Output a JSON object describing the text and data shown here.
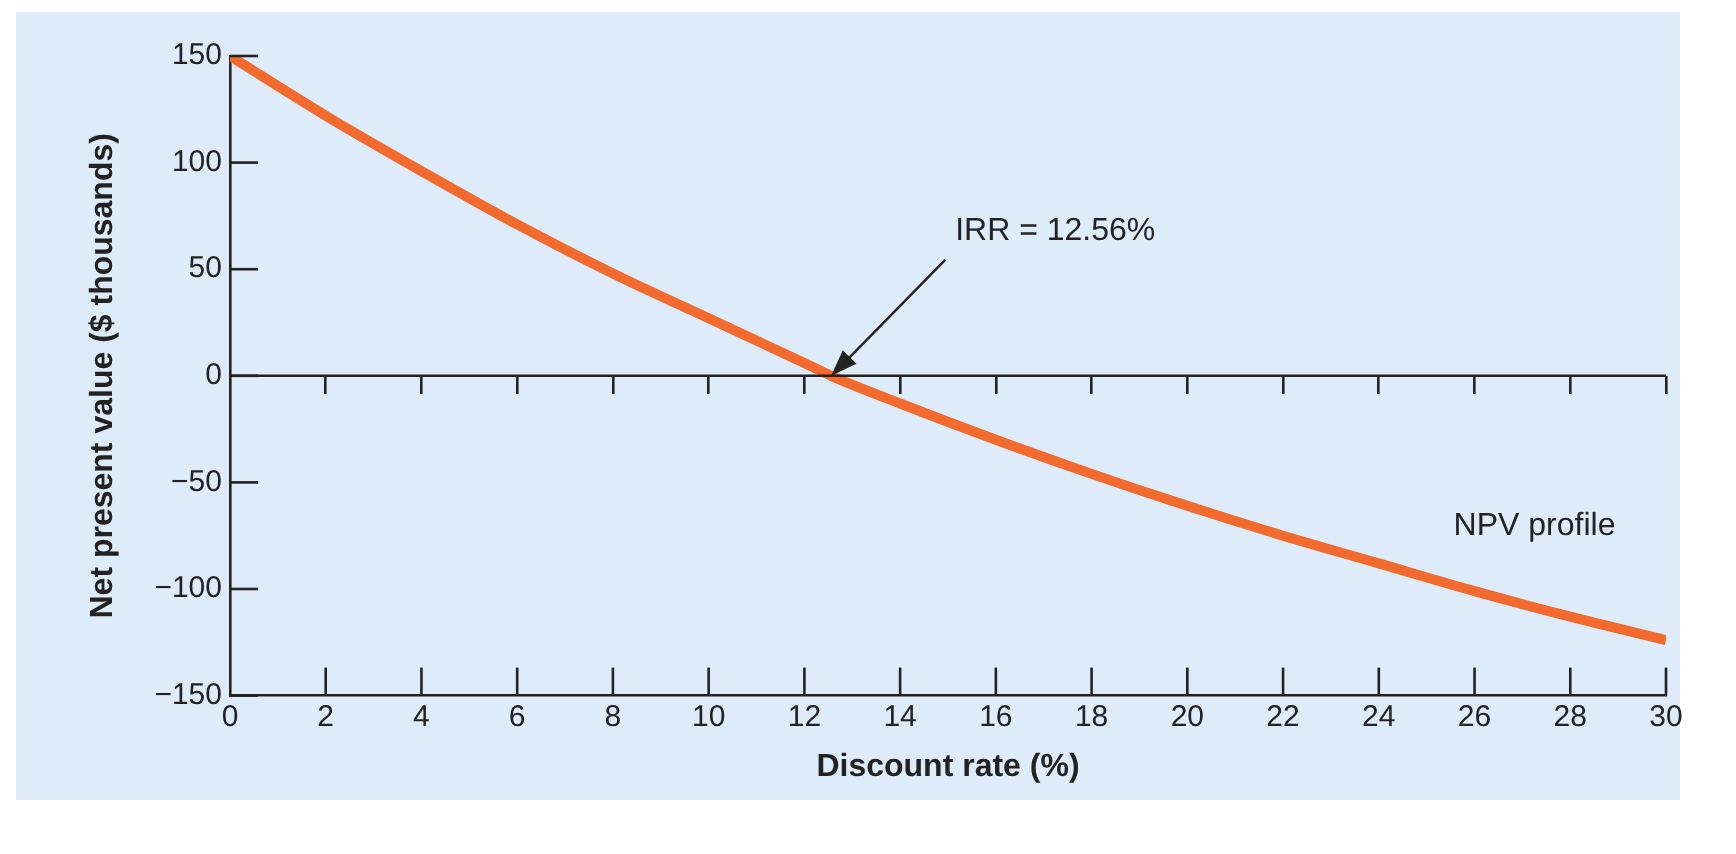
{
  "chart_data": {
    "type": "line",
    "xlabel": "Discount rate (%)",
    "ylabel": "Net present value ($ thousands)",
    "x": [
      0,
      2,
      4,
      6,
      8,
      10,
      12,
      12.56,
      14,
      16,
      18,
      20,
      22,
      24,
      26,
      28,
      30
    ],
    "series": [
      {
        "name": "NPV profile",
        "color": "#f26a2e",
        "values": [
          150,
          122,
          96,
          71,
          48,
          27,
          6,
          0,
          -13,
          -30,
          -46,
          -61,
          -75,
          -88,
          -101,
          -113,
          -124
        ]
      }
    ],
    "xlim": [
      0,
      30
    ],
    "xticks": [
      0,
      2,
      4,
      6,
      8,
      10,
      12,
      14,
      16,
      18,
      20,
      22,
      24,
      26,
      28,
      30
    ],
    "ylim": [
      -150,
      150
    ],
    "yticks": [
      {
        "value": -150,
        "label": "−150"
      },
      {
        "value": -100,
        "label": "−100"
      },
      {
        "value": -50,
        "label": "−50"
      },
      0,
      50,
      100,
      150
    ],
    "ref_lines": [
      {
        "axis": "y",
        "value": 0
      }
    ],
    "annotations": [
      {
        "text": "IRR = 12.56%",
        "x": 12.56,
        "y": 0
      }
    ],
    "grid": false,
    "legend": false,
    "marker": "none",
    "line_style": "solid"
  }
}
